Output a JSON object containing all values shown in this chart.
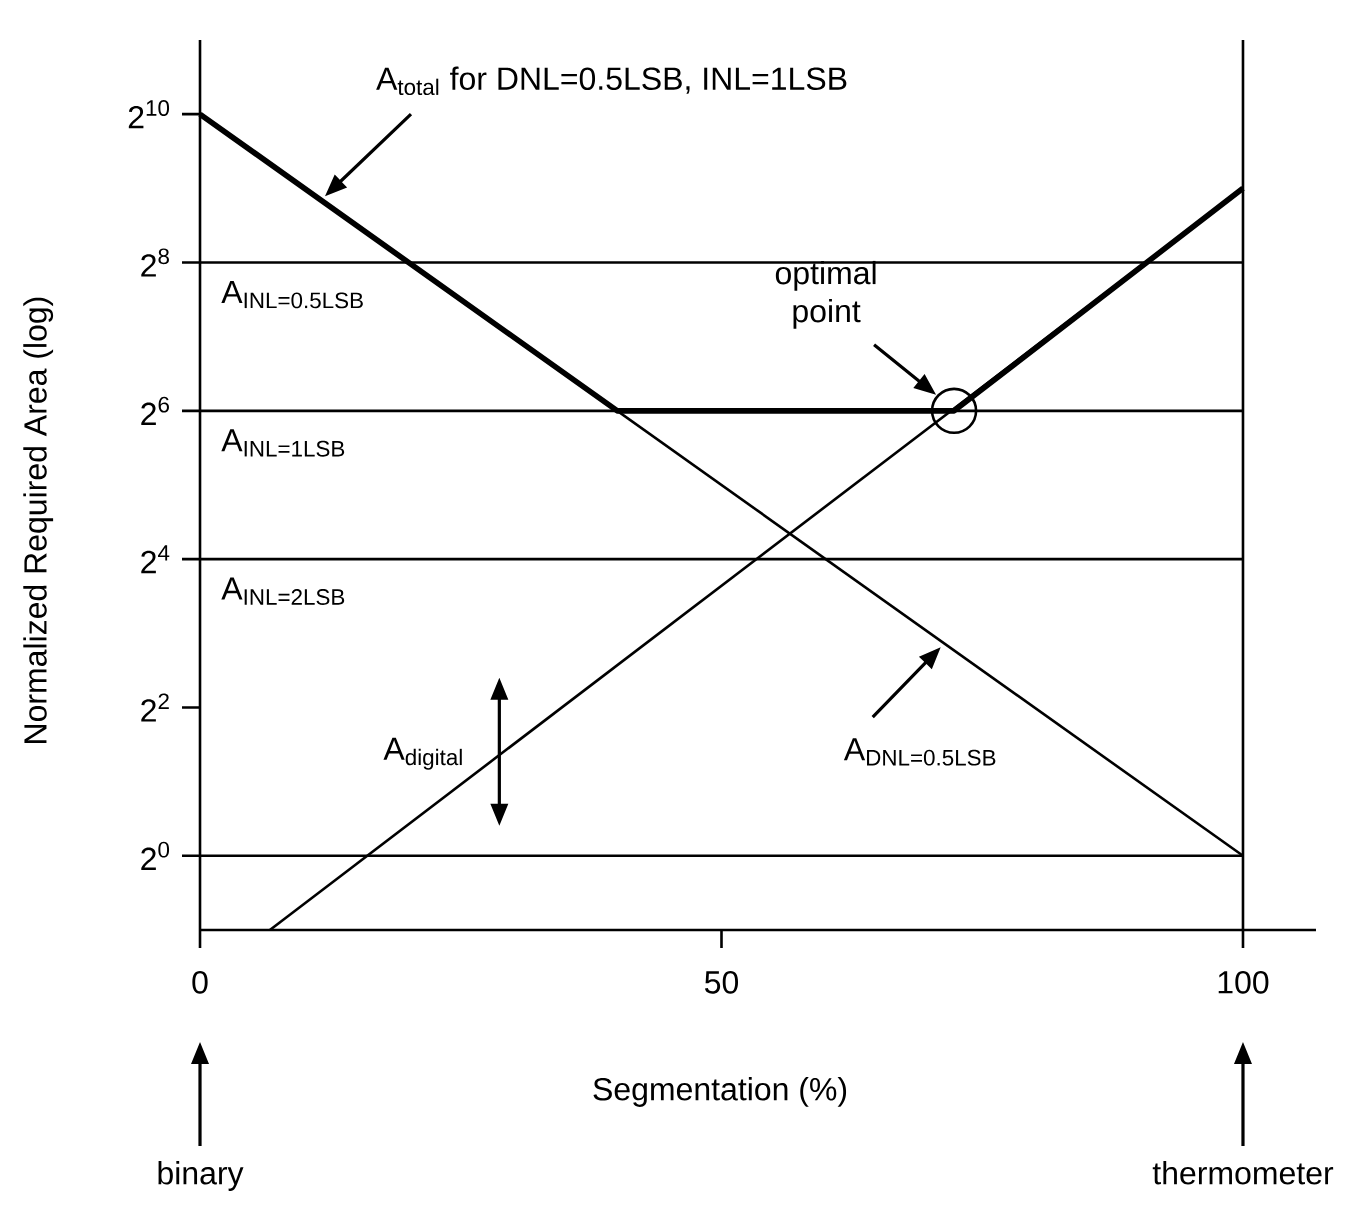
{
  "chart_data": {
    "type": "line",
    "xlabel": "Segmentation (%)",
    "ylabel": "Normalized Required Area (log)",
    "log": "y",
    "xlim": [
      0,
      107
    ],
    "ylim": [
      0.5,
      2048
    ],
    "xticks": [
      0,
      50,
      100
    ],
    "yticks": [
      {
        "value": 1,
        "label": "2$^{0}$"
      },
      {
        "value": 4,
        "label": "2$^{2}$"
      },
      {
        "value": 16,
        "label": "2$^{4}$"
      },
      {
        "value": 64,
        "label": "2$^{6}$"
      },
      {
        "value": 256,
        "label": "2$^{8}$"
      },
      {
        "value": 1024,
        "label": "2$^{10}$"
      }
    ],
    "ref_lines": [
      {
        "axis": "x",
        "value": 100
      }
    ],
    "series": [
      {
        "color": "#000000",
        "x": [
          0,
          40,
          72.3,
          100
        ],
        "values": [
          1024,
          64,
          64,
          512
        ]
      },
      {
        "color": "#000000",
        "x": [
          0,
          100
        ],
        "values": [
          1024,
          1
        ]
      },
      {
        "color": "#000000",
        "x": [
          6.7,
          100
        ],
        "values": [
          0.5,
          512
        ]
      },
      {
        "color": "#000000",
        "x": [
          0,
          100
        ],
        "values": [
          256,
          256
        ]
      },
      {
        "color": "#000000",
        "x": [
          0,
          100
        ],
        "values": [
          64,
          64
        ]
      },
      {
        "color": "#000000",
        "x": [
          0,
          100
        ],
        "values": [
          16,
          16
        ]
      },
      {
        "color": "#000000",
        "x": [
          0,
          100
        ],
        "values": [
          1,
          1
        ]
      },
      {
        "type": "scatter",
        "marker": "circle",
        "color": "#000000",
        "x": [
          72.3
        ],
        "values": [
          64
        ]
      }
    ],
    "annotations": [
      "A$_{total}$ for DNL=0.5LSB, INL=1LSB",
      "optimal point",
      {
        "text": "A$_{DNL=0.5LSB}$",
        "x": 71.4,
        "y": 7.3
      },
      {
        "text": "A$_{digital}$",
        "x": 28.7,
        "y": 2.5
      },
      "binary",
      "thermometer",
      {
        "text": "A$_{INL=0.5LSB}$",
        "x": 2,
        "y": 256
      },
      {
        "text": "A$_{INL=1LSB}$",
        "x": 2,
        "y": 64
      },
      {
        "text": "A$_{INL=2LSB}$",
        "x": 2,
        "y": 16
      }
    ]
  }
}
